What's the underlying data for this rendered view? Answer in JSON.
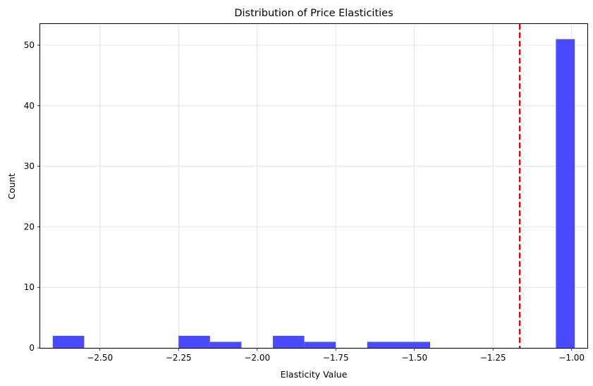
{
  "chart_data": {
    "type": "histogram",
    "title": "Distribution of Price Elasticities",
    "xlabel": "Elasticity Value",
    "ylabel": "Count",
    "xlim": [
      -2.69,
      -0.95
    ],
    "ylim": [
      0,
      53.5
    ],
    "x_ticks": [
      -2.5,
      -2.25,
      -2.0,
      -1.75,
      -1.5,
      -1.25,
      -1.0
    ],
    "x_tick_labels": [
      "−2.50",
      "−2.25",
      "−2.00",
      "−1.75",
      "−1.50",
      "−1.25",
      "−1.00"
    ],
    "y_ticks": [
      0,
      10,
      20,
      30,
      40,
      50
    ],
    "y_tick_labels": [
      "0",
      "10",
      "20",
      "30",
      "40",
      "50"
    ],
    "grid": true,
    "bar_color": "#4a4aff",
    "bins": [
      {
        "x0": -2.65,
        "x1": -2.55,
        "count": 2
      },
      {
        "x0": -2.55,
        "x1": -2.45,
        "count": 0
      },
      {
        "x0": -2.45,
        "x1": -2.35,
        "count": 0
      },
      {
        "x0": -2.35,
        "x1": -2.25,
        "count": 0
      },
      {
        "x0": -2.25,
        "x1": -2.15,
        "count": 2
      },
      {
        "x0": -2.15,
        "x1": -2.05,
        "count": 1
      },
      {
        "x0": -2.05,
        "x1": -1.95,
        "count": 0
      },
      {
        "x0": -1.95,
        "x1": -1.85,
        "count": 2
      },
      {
        "x0": -1.85,
        "x1": -1.75,
        "count": 1
      },
      {
        "x0": -1.75,
        "x1": -1.65,
        "count": 0
      },
      {
        "x0": -1.65,
        "x1": -1.55,
        "count": 1
      },
      {
        "x0": -1.55,
        "x1": -1.45,
        "count": 1
      },
      {
        "x0": -1.45,
        "x1": -1.35,
        "count": 0
      },
      {
        "x0": -1.35,
        "x1": -1.25,
        "count": 0
      },
      {
        "x0": -1.25,
        "x1": -1.15,
        "count": 0
      },
      {
        "x0": -1.15,
        "x1": -1.05,
        "count": 0
      },
      {
        "x0": -1.05,
        "x1": -0.99,
        "count": 51
      }
    ],
    "reference_line": {
      "x": -1.165,
      "color": "#e00000",
      "style": "dashed"
    }
  }
}
